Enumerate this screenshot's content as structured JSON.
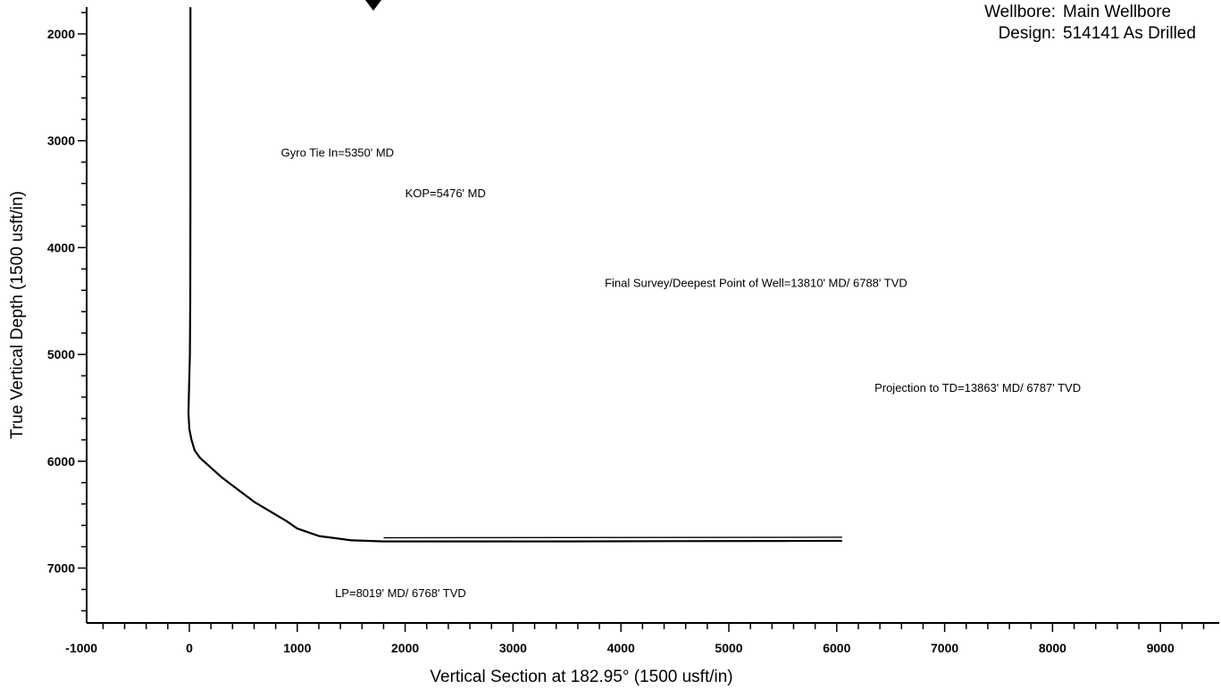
{
  "header": {
    "wellbore_label": "Wellbore:",
    "wellbore_value": "Main Wellbore",
    "design_label": "Design:",
    "design_value": "514141 As Drilled"
  },
  "chart_data": {
    "type": "line",
    "xlabel": "Vertical Section at 182.95° (1500 usft/in)",
    "ylabel": "True Vertical Depth (1500 usft/in)",
    "xlim": [
      -1000,
      9500
    ],
    "ylim": [
      1750,
      7500
    ],
    "y_inverted": true,
    "x_ticks": [
      -1000,
      0,
      1000,
      2000,
      3000,
      4000,
      5000,
      6000,
      7000,
      8000,
      9000
    ],
    "y_ticks": [
      2000,
      3000,
      4000,
      5000,
      6000,
      7000
    ],
    "grid": false,
    "series": [
      {
        "x": [
          10,
          10,
          10,
          8,
          5,
          0,
          -5,
          -8,
          0,
          20,
          50,
          100,
          300,
          600,
          900,
          1000,
          1200,
          1500,
          1800,
          2500,
          3500,
          4500,
          5500,
          6050
        ],
        "y": [
          1750,
          2500,
          3500,
          4500,
          5000,
          5200,
          5400,
          5550,
          5700,
          5800,
          5900,
          5970,
          6150,
          6380,
          6560,
          6630,
          6700,
          6740,
          6750,
          6750,
          6750,
          6748,
          6746,
          6745
        ]
      }
    ],
    "annotations": [
      {
        "text": "Gyro Tie In=5350' MD",
        "x": 850,
        "y": 3150
      },
      {
        "text": "KOP=5476' MD",
        "x": 2000,
        "y": 3530
      },
      {
        "text": "Final Survey/Deepest Point of Well=13810' MD/ 6788' TVD",
        "x": 3850,
        "y": 4370
      },
      {
        "text": "Projection to TD=13863' MD/ 6787' TVD",
        "x": 6350,
        "y": 5350
      },
      {
        "text": "LP=8019' MD/ 6768' TVD",
        "x": 1350,
        "y": 7270
      }
    ]
  }
}
